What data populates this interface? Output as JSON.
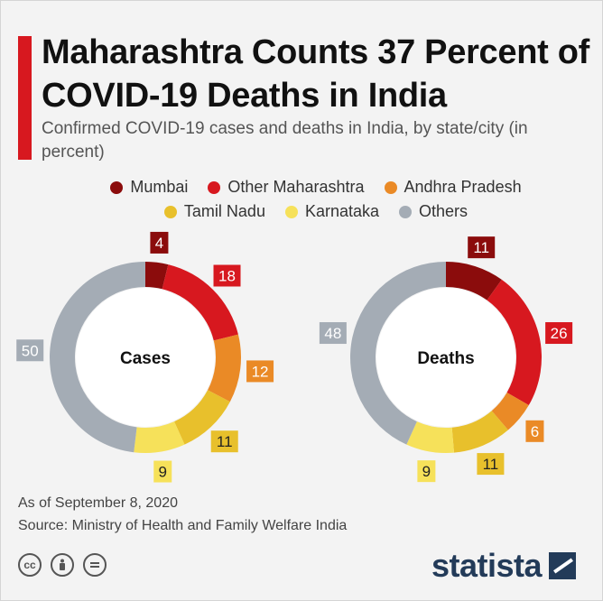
{
  "header": {
    "title": "Maharashtra Counts 37 Percent of COVID-19 Deaths in India",
    "subtitle": "Confirmed COVID-19 cases and deaths in India, by state/city (in percent)"
  },
  "colors": {
    "accent": "#d7181f",
    "mumbai": "#8b0c0c",
    "other_maharashtra": "#d7181f",
    "andhra_pradesh": "#ea8a26",
    "tamil_nadu": "#e8c02c",
    "karnataka": "#f6e15a",
    "others": "#a4acb5"
  },
  "chart_data": [
    {
      "type": "pie",
      "title": "Cases",
      "categories": [
        "Mumbai",
        "Other Maharashtra",
        "Andhra Pradesh",
        "Tamil Nadu",
        "Karnataka",
        "Others"
      ],
      "values": [
        4,
        18,
        12,
        11,
        9,
        50
      ],
      "legend": "top-center"
    },
    {
      "type": "pie",
      "title": "Deaths",
      "categories": [
        "Mumbai",
        "Other Maharashtra",
        "Andhra Pradesh",
        "Tamil Nadu",
        "Karnataka",
        "Others"
      ],
      "values": [
        11,
        26,
        6,
        11,
        9,
        48
      ],
      "legend": "top-center"
    }
  ],
  "legend": {
    "items": [
      {
        "label": "Mumbai",
        "color": "#8b0c0c"
      },
      {
        "label": "Other Maharashtra",
        "color": "#d7181f"
      },
      {
        "label": "Andhra Pradesh",
        "color": "#ea8a26"
      },
      {
        "label": "Tamil Nadu",
        "color": "#e8c02c"
      },
      {
        "label": "Karnataka",
        "color": "#f6e15a"
      },
      {
        "label": "Others",
        "color": "#a4acb5"
      }
    ]
  },
  "footer": {
    "date_note": "As of September 8, 2020",
    "source": "Source: Ministry of Health and Family Welfare India",
    "brand": "statista",
    "license_icons": [
      "cc-icon",
      "attribution-icon",
      "no-derivatives-icon"
    ]
  }
}
